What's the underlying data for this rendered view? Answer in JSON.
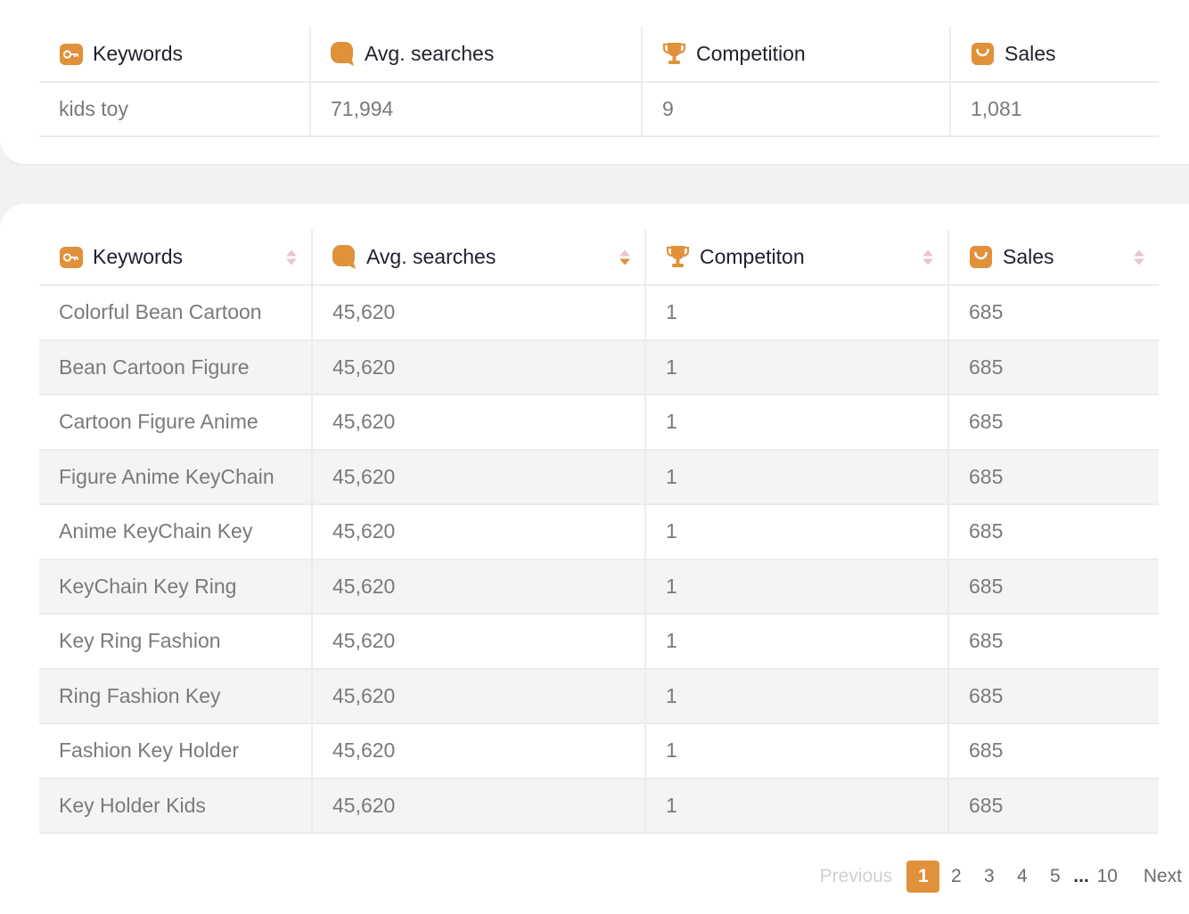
{
  "accent_color": "#E0913A",
  "summary": {
    "headers": [
      {
        "label": "Keywords",
        "icon": "key-icon"
      },
      {
        "label": "Avg. searches",
        "icon": "search-icon"
      },
      {
        "label": "Competition",
        "icon": "trophy-icon"
      },
      {
        "label": "Sales",
        "icon": "shopping-bag-icon"
      }
    ],
    "row": {
      "keyword": "kids toy",
      "avg_searches": "71,994",
      "competition": "9",
      "sales": "1,081"
    }
  },
  "results": {
    "headers": [
      {
        "label": "Keywords",
        "icon": "key-icon"
      },
      {
        "label": "Avg. searches",
        "icon": "search-icon"
      },
      {
        "label": "Competiton",
        "icon": "trophy-icon"
      },
      {
        "label": "Sales",
        "icon": "shopping-bag-icon"
      }
    ],
    "active_sort": "Avg. searches descending",
    "rows": [
      {
        "keyword": "Colorful Bean Cartoon",
        "avg_searches": "45,620",
        "competition": "1",
        "sales": "685"
      },
      {
        "keyword": "Bean Cartoon Figure",
        "avg_searches": "45,620",
        "competition": "1",
        "sales": "685"
      },
      {
        "keyword": "Cartoon Figure Anime",
        "avg_searches": "45,620",
        "competition": "1",
        "sales": "685"
      },
      {
        "keyword": "Figure Anime KeyChain",
        "avg_searches": "45,620",
        "competition": "1",
        "sales": "685"
      },
      {
        "keyword": "Anime KeyChain Key",
        "avg_searches": "45,620",
        "competition": "1",
        "sales": "685"
      },
      {
        "keyword": "KeyChain Key Ring",
        "avg_searches": "45,620",
        "competition": "1",
        "sales": "685"
      },
      {
        "keyword": "Key Ring Fashion",
        "avg_searches": "45,620",
        "competition": "1",
        "sales": "685"
      },
      {
        "keyword": "Ring Fashion Key",
        "avg_searches": "45,620",
        "competition": "1",
        "sales": "685"
      },
      {
        "keyword": "Fashion Key Holder",
        "avg_searches": "45,620",
        "competition": "1",
        "sales": "685"
      },
      {
        "keyword": "Key Holder Kids",
        "avg_searches": "45,620",
        "competition": "1",
        "sales": "685"
      }
    ]
  },
  "pagination": {
    "previous": "Previous",
    "pages": [
      "1",
      "2",
      "3",
      "4",
      "5"
    ],
    "ellipsis": "...",
    "last_page": "10",
    "next": "Next",
    "current": "1"
  }
}
